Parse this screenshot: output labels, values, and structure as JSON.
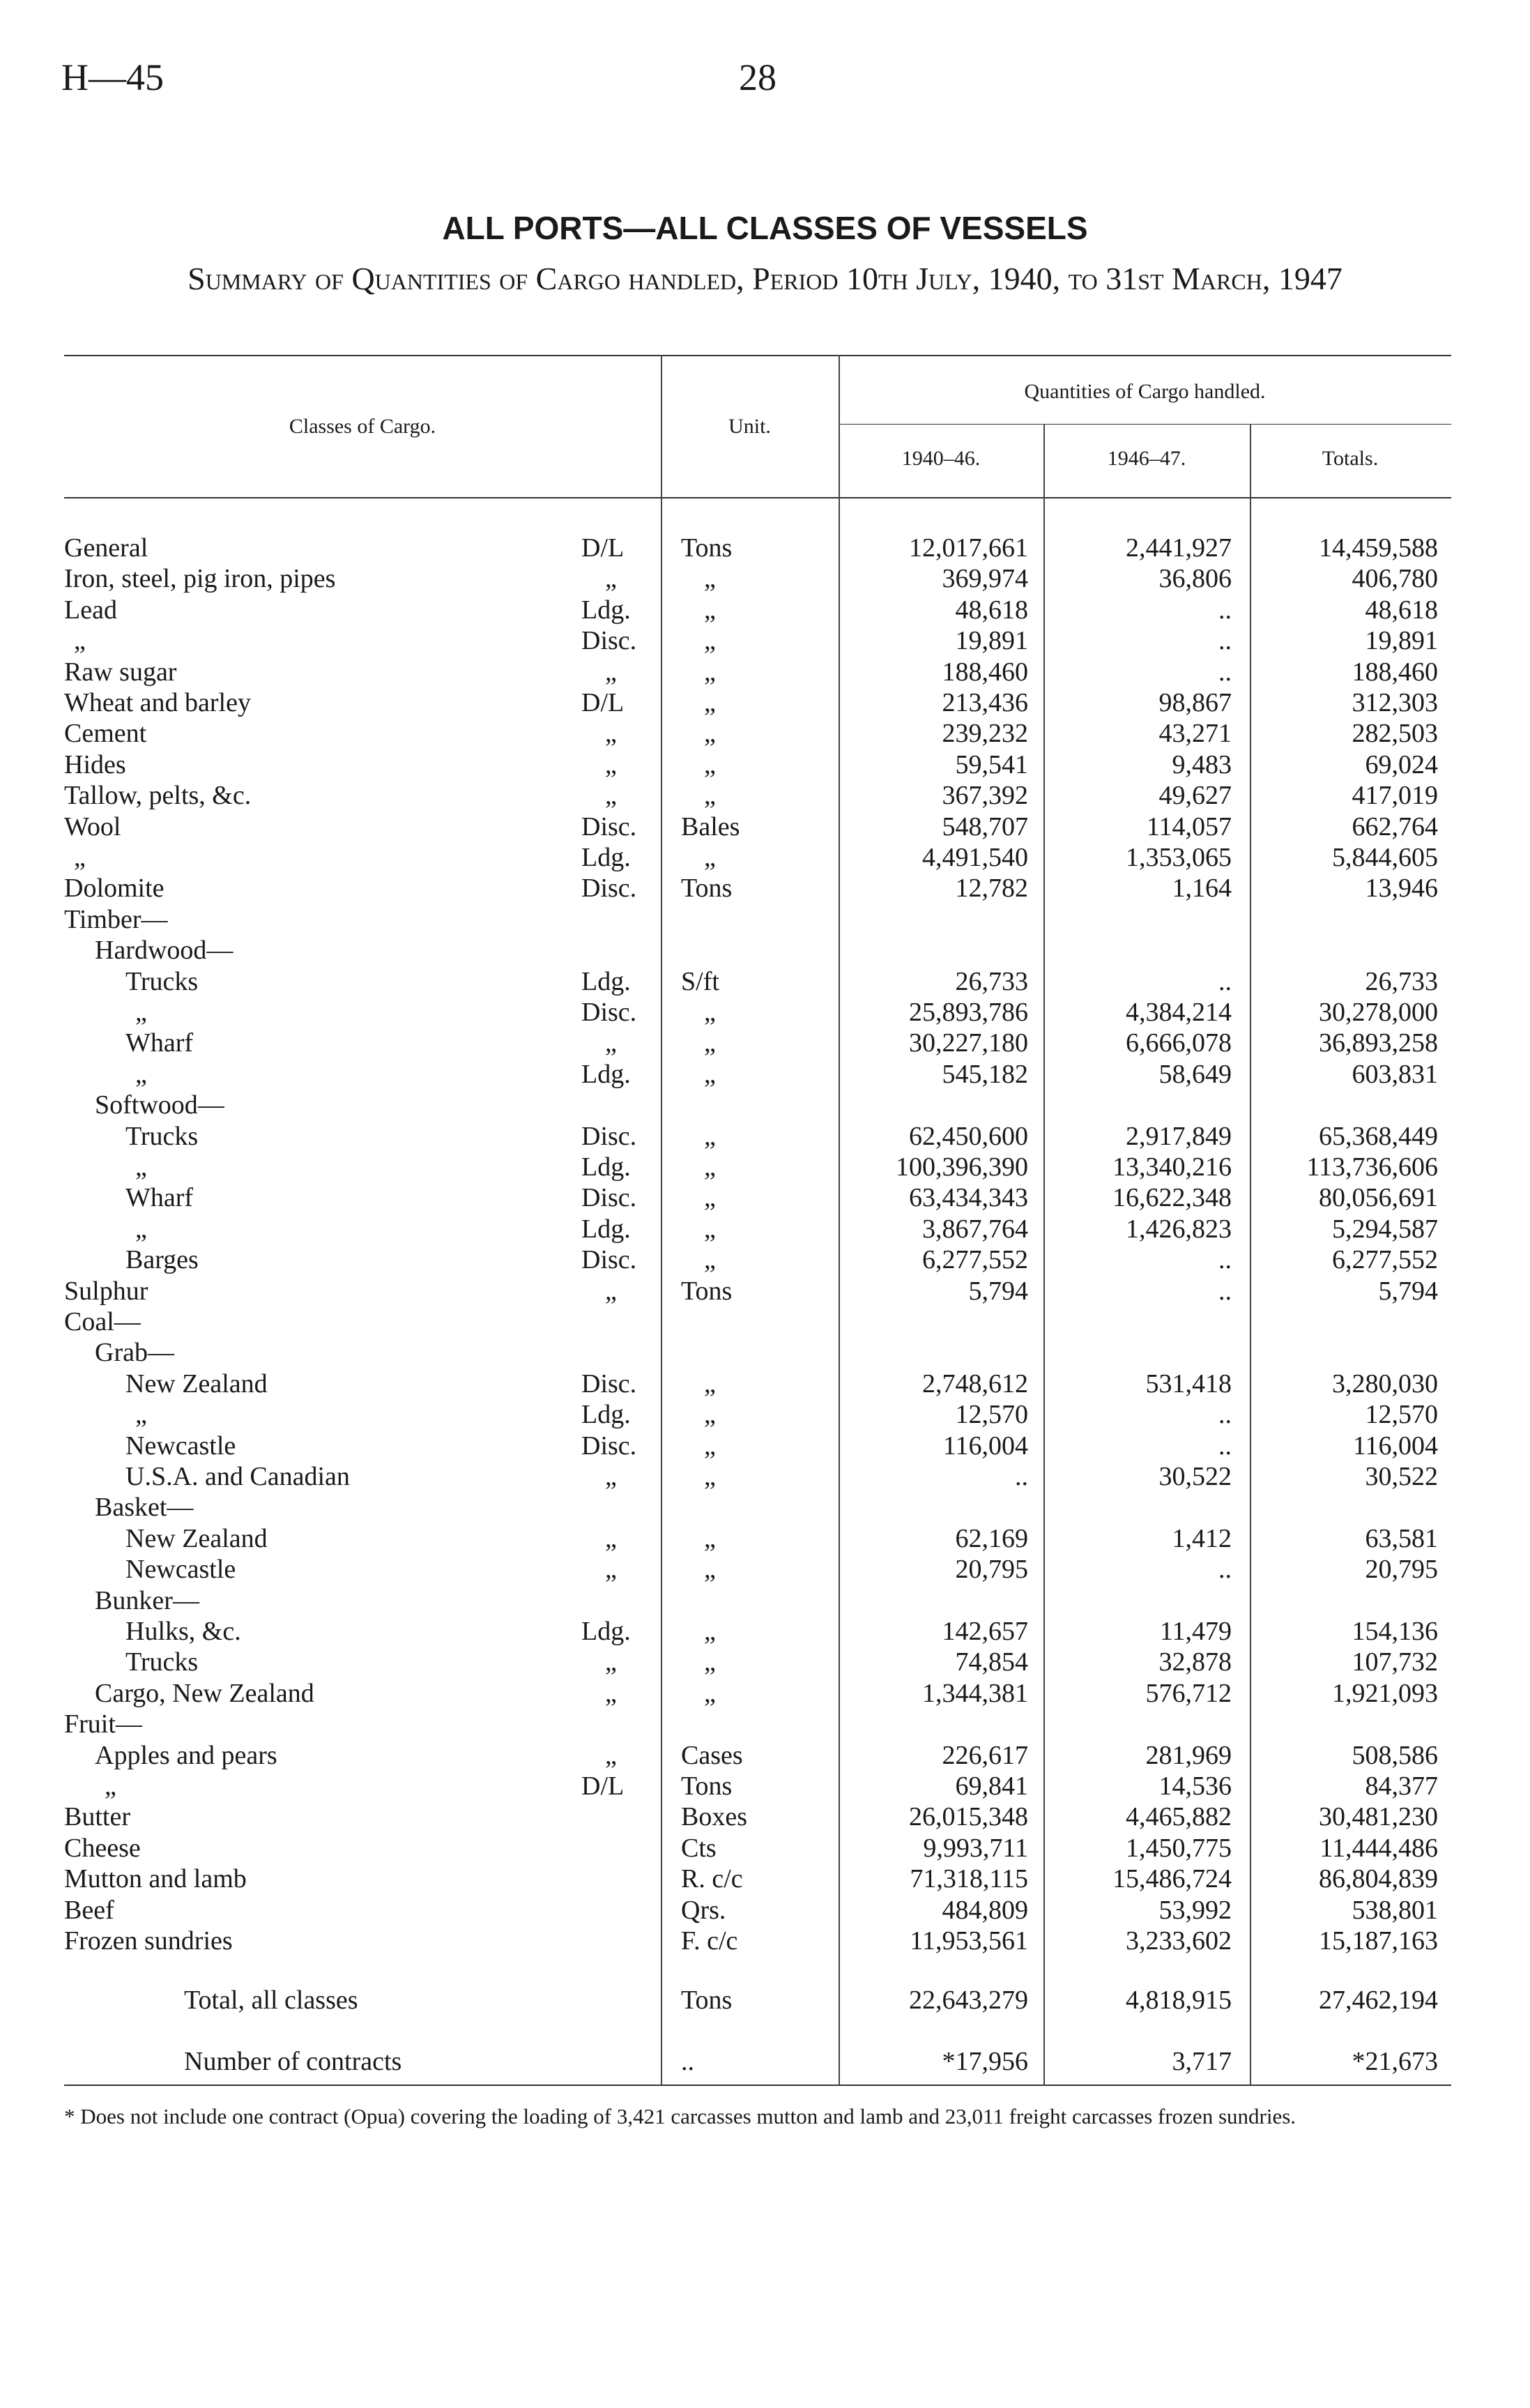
{
  "header": {
    "page_id": "H—45",
    "page_number": "28"
  },
  "title": "ALL PORTS—ALL CLASSES OF VESSELS",
  "subtitle": "Summary of Quantities of Cargo handled, Period 10th July, 1940, to 31st March, 1947",
  "table": {
    "headers": {
      "classes": "Classes of Cargo.",
      "unit": "Unit.",
      "quantities": "Quantities of Cargo handled.",
      "periods": [
        "1940–46.",
        "1946–47.",
        "Totals."
      ]
    },
    "rows": [
      {
        "label": "General",
        "code": "D/L",
        "unit": "Tons",
        "values": [
          "12,017,661",
          "2,441,927",
          "14,459,588"
        ]
      },
      {
        "label": "Iron, steel, pig iron, pipes",
        "code": "„",
        "unit": "„",
        "values": [
          "369,974",
          "36,806",
          "406,780"
        ]
      },
      {
        "label": "Lead",
        "code": "Ldg.",
        "unit": "„",
        "values": [
          "48,618",
          "..",
          "48,618"
        ]
      },
      {
        "label": "„",
        "code": "Disc.",
        "unit": "„",
        "values": [
          "19,891",
          "..",
          "19,891"
        ]
      },
      {
        "label": "Raw sugar",
        "code": "„",
        "unit": "„",
        "values": [
          "188,460",
          "..",
          "188,460"
        ]
      },
      {
        "label": "Wheat and barley",
        "code": "D/L",
        "unit": "„",
        "values": [
          "213,436",
          "98,867",
          "312,303"
        ]
      },
      {
        "label": "Cement",
        "code": "„",
        "unit": "„",
        "values": [
          "239,232",
          "43,271",
          "282,503"
        ]
      },
      {
        "label": "Hides",
        "code": "„",
        "unit": "„",
        "values": [
          "59,541",
          "9,483",
          "69,024"
        ]
      },
      {
        "label": "Tallow, pelts, &c.",
        "code": "„",
        "unit": "„",
        "values": [
          "367,392",
          "49,627",
          "417,019"
        ]
      },
      {
        "label": "Wool",
        "code": "Disc.",
        "unit": "Bales",
        "values": [
          "548,707",
          "114,057",
          "662,764"
        ]
      },
      {
        "label": "„",
        "code": "Ldg.",
        "unit": "„",
        "values": [
          "4,491,540",
          "1,353,065",
          "5,844,605"
        ]
      },
      {
        "label": "Dolomite",
        "code": "Disc.",
        "unit": "Tons",
        "values": [
          "12,782",
          "1,164",
          "13,946"
        ]
      },
      {
        "label": "Timber—"
      },
      {
        "label": "Hardwood—"
      },
      {
        "label": "Trucks",
        "code": "Ldg.",
        "unit": "S/ft",
        "values": [
          "26,733",
          "..",
          "26,733"
        ]
      },
      {
        "label": "„",
        "code": "Disc.",
        "unit": "„",
        "values": [
          "25,893,786",
          "4,384,214",
          "30,278,000"
        ]
      },
      {
        "label": "Wharf",
        "code": "„",
        "unit": "„",
        "values": [
          "30,227,180",
          "6,666,078",
          "36,893,258"
        ]
      },
      {
        "label": "„",
        "code": "Ldg.",
        "unit": "„",
        "values": [
          "545,182",
          "58,649",
          "603,831"
        ]
      },
      {
        "label": "Softwood—"
      },
      {
        "label": "Trucks",
        "code": "Disc.",
        "unit": "„",
        "values": [
          "62,450,600",
          "2,917,849",
          "65,368,449"
        ]
      },
      {
        "label": "„",
        "code": "Ldg.",
        "unit": "„",
        "values": [
          "100,396,390",
          "13,340,216",
          "113,736,606"
        ]
      },
      {
        "label": "Wharf",
        "code": "Disc.",
        "unit": "„",
        "values": [
          "63,434,343",
          "16,622,348",
          "80,056,691"
        ]
      },
      {
        "label": "„",
        "code": "Ldg.",
        "unit": "„",
        "values": [
          "3,867,764",
          "1,426,823",
          "5,294,587"
        ]
      },
      {
        "label": "Barges",
        "code": "Disc.",
        "unit": "„",
        "values": [
          "6,277,552",
          "..",
          "6,277,552"
        ]
      },
      {
        "label": "Sulphur",
        "code": "„",
        "unit": "Tons",
        "values": [
          "5,794",
          "..",
          "5,794"
        ]
      },
      {
        "label": "Coal—"
      },
      {
        "label": "Grab—"
      },
      {
        "label": "New Zealand",
        "code": "Disc.",
        "unit": "„",
        "values": [
          "2,748,612",
          "531,418",
          "3,280,030"
        ]
      },
      {
        "label": "„",
        "code": "Ldg.",
        "unit": "„",
        "values": [
          "12,570",
          "..",
          "12,570"
        ]
      },
      {
        "label": "Newcastle",
        "code": "Disc.",
        "unit": "„",
        "values": [
          "116,004",
          "..",
          "116,004"
        ]
      },
      {
        "label": "U.S.A. and Canadian",
        "code": "„",
        "unit": "„",
        "values": [
          "..",
          "30,522",
          "30,522"
        ]
      },
      {
        "label": "Basket—"
      },
      {
        "label": "New Zealand",
        "code": "„",
        "unit": "„",
        "values": [
          "62,169",
          "1,412",
          "63,581"
        ]
      },
      {
        "label": "Newcastle",
        "code": "„",
        "unit": "„",
        "values": [
          "20,795",
          "..",
          "20,795"
        ]
      },
      {
        "label": "Bunker—"
      },
      {
        "label": "Hulks, &c.",
        "code": "Ldg.",
        "unit": "„",
        "values": [
          "142,657",
          "11,479",
          "154,136"
        ]
      },
      {
        "label": "Trucks",
        "code": "„",
        "unit": "„",
        "values": [
          "74,854",
          "32,878",
          "107,732"
        ]
      },
      {
        "label": "Cargo, New Zealand",
        "code": "„",
        "unit": "„",
        "values": [
          "1,344,381",
          "576,712",
          "1,921,093"
        ]
      },
      {
        "label": "Fruit—"
      },
      {
        "label": "Apples and pears",
        "code": "„",
        "unit": "Cases",
        "values": [
          "226,617",
          "281,969",
          "508,586"
        ]
      },
      {
        "label": "„",
        "code": "D/L",
        "unit": "Tons",
        "values": [
          "69,841",
          "14,536",
          "84,377"
        ]
      },
      {
        "label": "Butter",
        "unit": "Boxes",
        "values": [
          "26,015,348",
          "4,465,882",
          "30,481,230"
        ]
      },
      {
        "label": "Cheese",
        "unit": "Cts",
        "values": [
          "9,993,711",
          "1,450,775",
          "11,444,486"
        ]
      },
      {
        "label": "Mutton and lamb",
        "unit": "R. c/c",
        "values": [
          "71,318,115",
          "15,486,724",
          "86,804,839"
        ]
      },
      {
        "label": "Beef",
        "unit": "Qrs.",
        "values": [
          "484,809",
          "53,992",
          "538,801"
        ]
      },
      {
        "label": "Frozen sundries",
        "unit": "F. c/c",
        "values": [
          "11,953,561",
          "3,233,602",
          "15,187,163"
        ]
      }
    ],
    "total_row": {
      "label": "Total, all classes",
      "unit": "Tons",
      "values": [
        "22,643,279",
        "4,818,915",
        "27,462,194"
      ]
    },
    "contracts_row": {
      "label": "Number of contracts",
      "unit": "..",
      "values": [
        "*17,956",
        "3,717",
        "*21,673"
      ]
    }
  },
  "footnote": "* Does not include one contract (Opua) covering the loading of 3,421 carcasses mutton and lamb and 23,011 freight carcasses frozen sundries."
}
